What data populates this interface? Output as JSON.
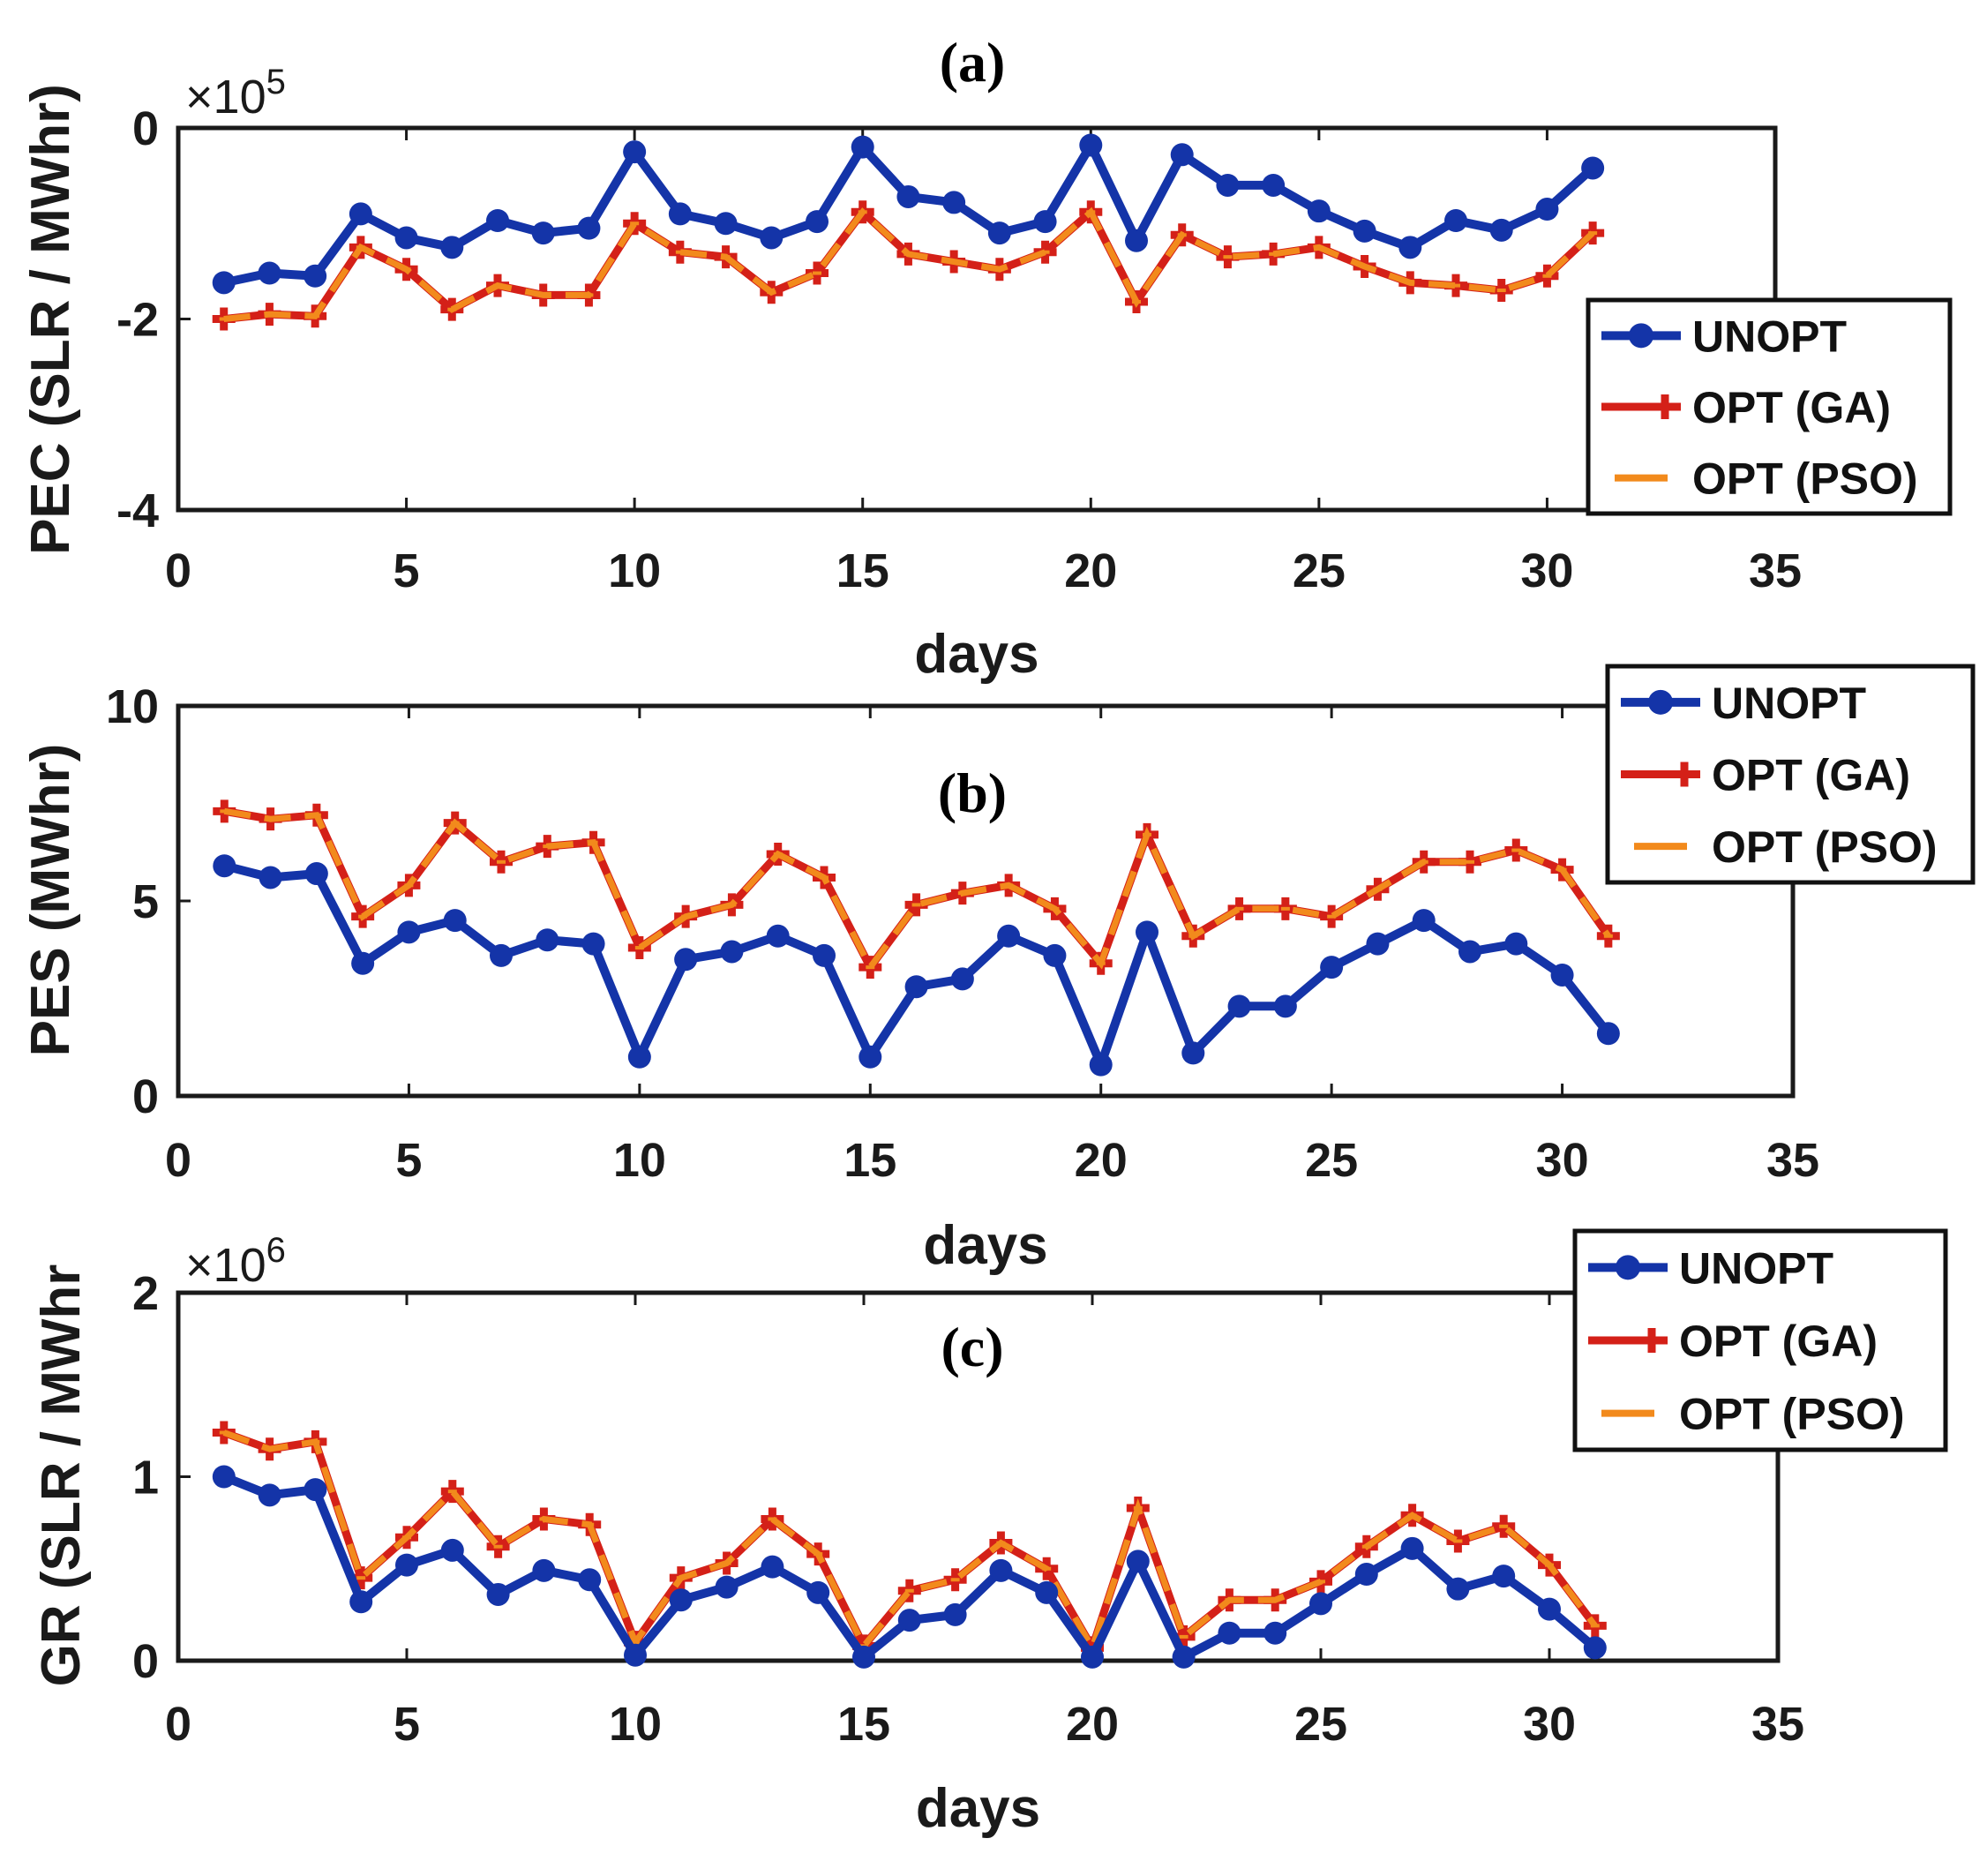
{
  "chart_data": [
    {
      "type": "line",
      "panel_title": "(a)",
      "xlabel": "days",
      "ylabel": "PEC (SLR / MWhr)",
      "exponent_base": "×10",
      "exponent_power": "5",
      "xlim": [
        0,
        35
      ],
      "ylim": [
        -4,
        0
      ],
      "xticks": [
        0,
        5,
        10,
        15,
        20,
        25,
        30,
        35
      ],
      "xtick_labels": [
        "0",
        "5",
        "10",
        "15",
        "20",
        "25",
        "30",
        "35"
      ],
      "yticks": [
        -4,
        -2,
        0
      ],
      "ytick_labels": [
        "-4",
        "-2",
        "0"
      ],
      "x": [
        1,
        2,
        3,
        4,
        5,
        6,
        7,
        8,
        9,
        10,
        11,
        12,
        13,
        14,
        15,
        16,
        17,
        18,
        19,
        20,
        21,
        22,
        23,
        24,
        25,
        26,
        27,
        28,
        29,
        30,
        31
      ],
      "series": [
        {
          "name": "UNOPT",
          "values": [
            -1.62,
            -1.52,
            -1.55,
            -0.9,
            -1.15,
            -1.25,
            -0.97,
            -1.1,
            -1.05,
            -0.25,
            -0.9,
            -1.0,
            -1.15,
            -0.98,
            -0.2,
            -0.72,
            -0.78,
            -1.1,
            -0.98,
            -0.18,
            -1.18,
            -0.28,
            -0.6,
            -0.6,
            -0.87,
            -1.08,
            -1.25,
            -0.97,
            -1.07,
            -0.85,
            -0.42
          ]
        },
        {
          "name": "OPT (GA)",
          "values": [
            -2.0,
            -1.95,
            -1.97,
            -1.25,
            -1.48,
            -1.9,
            -1.65,
            -1.75,
            -1.75,
            -1.0,
            -1.3,
            -1.35,
            -1.72,
            -1.52,
            -0.88,
            -1.32,
            -1.4,
            -1.48,
            -1.3,
            -0.88,
            -1.82,
            -1.12,
            -1.35,
            -1.32,
            -1.25,
            -1.45,
            -1.62,
            -1.65,
            -1.7,
            -1.55,
            -1.1
          ]
        },
        {
          "name": "OPT (PSO)",
          "values": [
            -2.0,
            -1.95,
            -1.97,
            -1.25,
            -1.48,
            -1.9,
            -1.65,
            -1.75,
            -1.75,
            -1.0,
            -1.3,
            -1.35,
            -1.72,
            -1.52,
            -0.88,
            -1.32,
            -1.4,
            -1.48,
            -1.3,
            -0.88,
            -1.82,
            -1.12,
            -1.35,
            -1.32,
            -1.25,
            -1.45,
            -1.62,
            -1.65,
            -1.7,
            -1.55,
            -1.1
          ]
        }
      ],
      "legend": [
        "UNOPT",
        "OPT (GA)",
        "OPT (PSO)"
      ],
      "legend_position": "right"
    },
    {
      "type": "line",
      "panel_title": "(b)",
      "xlabel": "days",
      "ylabel": "PES (MWhr)",
      "xlim": [
        0,
        35
      ],
      "ylim": [
        0,
        10
      ],
      "xticks": [
        0,
        5,
        10,
        15,
        20,
        25,
        30,
        35
      ],
      "xtick_labels": [
        "0",
        "5",
        "10",
        "15",
        "20",
        "25",
        "30",
        "35"
      ],
      "yticks": [
        0,
        5,
        10
      ],
      "ytick_labels": [
        "0",
        "5",
        "10"
      ],
      "x": [
        1,
        2,
        3,
        4,
        5,
        6,
        7,
        8,
        9,
        10,
        11,
        12,
        13,
        14,
        15,
        16,
        17,
        18,
        19,
        20,
        21,
        22,
        23,
        24,
        25,
        26,
        27,
        28,
        29,
        30,
        31
      ],
      "series": [
        {
          "name": "UNOPT",
          "values": [
            5.9,
            5.6,
            5.7,
            3.4,
            4.2,
            4.5,
            3.6,
            4.0,
            3.9,
            1.0,
            3.5,
            3.7,
            4.1,
            3.6,
            1.0,
            2.8,
            3.0,
            4.1,
            3.6,
            0.8,
            4.2,
            1.1,
            2.3,
            2.3,
            3.3,
            3.9,
            4.5,
            3.7,
            3.9,
            3.1,
            1.6
          ]
        },
        {
          "name": "OPT (GA)",
          "values": [
            7.3,
            7.1,
            7.2,
            4.6,
            5.4,
            7.0,
            6.0,
            6.4,
            6.5,
            3.8,
            4.6,
            4.9,
            6.2,
            5.6,
            3.3,
            4.9,
            5.2,
            5.4,
            4.8,
            3.4,
            6.7,
            4.1,
            4.8,
            4.8,
            4.6,
            5.3,
            6.0,
            6.0,
            6.3,
            5.8,
            4.1
          ]
        },
        {
          "name": "OPT (PSO)",
          "values": [
            7.3,
            7.1,
            7.2,
            4.6,
            5.4,
            7.0,
            6.0,
            6.4,
            6.5,
            3.8,
            4.6,
            4.9,
            6.2,
            5.6,
            3.3,
            4.9,
            5.2,
            5.4,
            4.8,
            3.4,
            6.7,
            4.1,
            4.8,
            4.8,
            4.6,
            5.3,
            6.0,
            6.0,
            6.3,
            5.8,
            4.1
          ]
        }
      ],
      "legend": [
        "UNOPT",
        "OPT (GA)",
        "OPT (PSO)"
      ],
      "legend_position": "top-right"
    },
    {
      "type": "line",
      "panel_title": "(c)",
      "xlabel": "days",
      "ylabel": "GR (SLR / MWhr",
      "exponent_base": "×10",
      "exponent_power": "6",
      "xlim": [
        0,
        35
      ],
      "ylim": [
        0,
        2
      ],
      "xticks": [
        0,
        5,
        10,
        15,
        20,
        25,
        30,
        35
      ],
      "xtick_labels": [
        "0",
        "5",
        "10",
        "15",
        "20",
        "25",
        "30",
        "35"
      ],
      "yticks": [
        0,
        1,
        2
      ],
      "ytick_labels": [
        "0",
        "1",
        "2"
      ],
      "x": [
        1,
        2,
        3,
        4,
        5,
        6,
        7,
        8,
        9,
        10,
        11,
        12,
        13,
        14,
        15,
        16,
        17,
        18,
        19,
        20,
        21,
        22,
        23,
        24,
        25,
        26,
        27,
        28,
        29,
        30,
        31
      ],
      "series": [
        {
          "name": "UNOPT",
          "values": [
            1.0,
            0.9,
            0.93,
            0.32,
            0.52,
            0.6,
            0.36,
            0.49,
            0.44,
            0.03,
            0.33,
            0.4,
            0.51,
            0.37,
            0.02,
            0.22,
            0.25,
            0.49,
            0.37,
            0.02,
            0.54,
            0.02,
            0.15,
            0.15,
            0.31,
            0.47,
            0.61,
            0.39,
            0.46,
            0.28,
            0.07
          ]
        },
        {
          "name": "OPT (GA)",
          "values": [
            1.24,
            1.15,
            1.19,
            0.45,
            0.67,
            0.92,
            0.62,
            0.77,
            0.74,
            0.1,
            0.45,
            0.53,
            0.77,
            0.58,
            0.08,
            0.38,
            0.44,
            0.64,
            0.5,
            0.07,
            0.83,
            0.13,
            0.33,
            0.33,
            0.43,
            0.62,
            0.79,
            0.65,
            0.73,
            0.52,
            0.19
          ]
        },
        {
          "name": "OPT (PSO)",
          "values": [
            1.24,
            1.15,
            1.19,
            0.45,
            0.67,
            0.92,
            0.62,
            0.77,
            0.74,
            0.1,
            0.45,
            0.53,
            0.77,
            0.58,
            0.08,
            0.38,
            0.44,
            0.64,
            0.5,
            0.07,
            0.83,
            0.13,
            0.33,
            0.33,
            0.43,
            0.62,
            0.79,
            0.65,
            0.73,
            0.52,
            0.19
          ]
        }
      ],
      "legend": [
        "UNOPT",
        "OPT (GA)",
        "OPT (PSO)"
      ],
      "legend_position": "right"
    }
  ],
  "colors": {
    "unopt": "#1434a8",
    "ga": "#d42018",
    "pso": "#f28a1c",
    "axis": "#1a1a1a"
  }
}
